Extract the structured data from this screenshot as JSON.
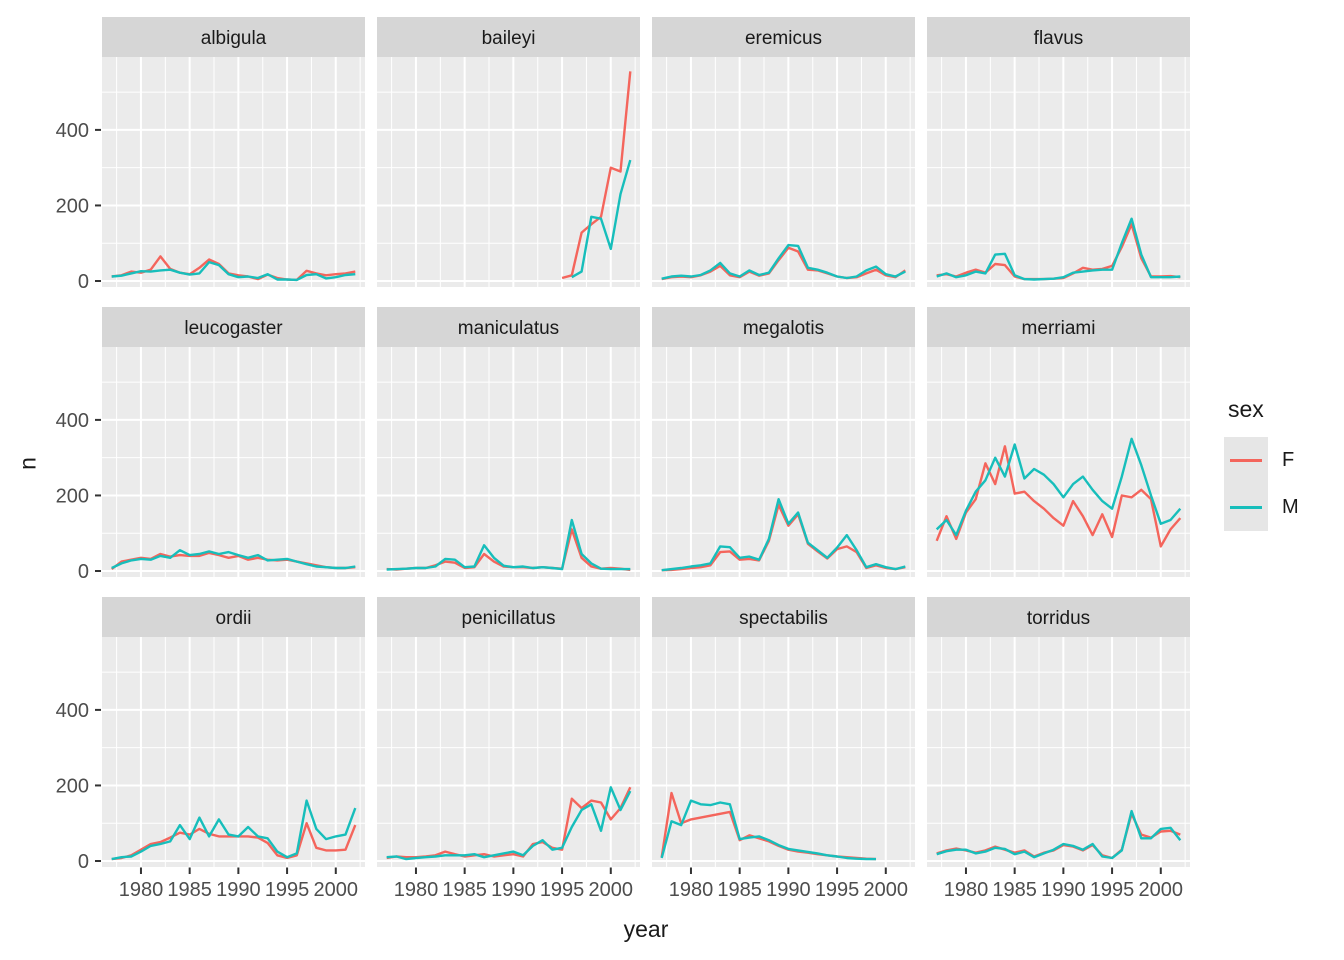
{
  "chart_data": {
    "type": "line",
    "title": "",
    "xlabel": "year",
    "ylabel": "n",
    "facet_variable": "species",
    "legend": {
      "title": "sex",
      "position": "right",
      "entries": [
        {
          "label": "F",
          "color": "#F4655C"
        },
        {
          "label": "M",
          "color": "#17BEBB"
        }
      ]
    },
    "x": [
      1977,
      1978,
      1979,
      1980,
      1981,
      1982,
      1983,
      1984,
      1985,
      1986,
      1987,
      1988,
      1989,
      1990,
      1991,
      1992,
      1993,
      1994,
      1995,
      1996,
      1997,
      1998,
      1999,
      2000,
      2001,
      2002
    ],
    "x_ticks": [
      1980,
      1985,
      1990,
      1995,
      2000
    ],
    "x_minor_ticks": [
      1977.5,
      1982.5,
      1987.5,
      1992.5,
      1997.5,
      2002.5
    ],
    "y_ticks": [
      0,
      200,
      400
    ],
    "y_minor_ticks": [
      100,
      300,
      500
    ],
    "ylim": [
      0,
      593
    ],
    "grid": "white major+minor gridlines on grey panels",
    "facets": [
      {
        "name": "albigula",
        "F": [
          12,
          15,
          25,
          22,
          30,
          65,
          32,
          22,
          18,
          35,
          57,
          45,
          20,
          15,
          12,
          5,
          17,
          8,
          4,
          3,
          27,
          20,
          15,
          18,
          20,
          25
        ],
        "M": [
          12,
          14,
          20,
          26,
          25,
          28,
          30,
          22,
          17,
          20,
          50,
          42,
          18,
          10,
          12,
          8,
          18,
          4,
          4,
          3,
          16,
          18,
          7,
          10,
          16,
          18
        ]
      },
      {
        "name": "baileyi",
        "F": [
          null,
          null,
          null,
          null,
          null,
          null,
          null,
          null,
          null,
          null,
          null,
          null,
          null,
          null,
          null,
          null,
          null,
          null,
          8,
          15,
          128,
          150,
          170,
          300,
          290,
          555
        ],
        "M": [
          null,
          null,
          null,
          null,
          null,
          null,
          null,
          null,
          null,
          null,
          null,
          null,
          null,
          null,
          null,
          null,
          null,
          null,
          null,
          10,
          25,
          170,
          165,
          85,
          230,
          320
        ]
      },
      {
        "name": "eremicus",
        "F": [
          5,
          10,
          12,
          10,
          15,
          25,
          40,
          15,
          10,
          25,
          14,
          20,
          55,
          88,
          78,
          30,
          28,
          20,
          12,
          8,
          10,
          20,
          30,
          15,
          10,
          28
        ],
        "M": [
          6,
          12,
          14,
          12,
          16,
          28,
          48,
          20,
          12,
          28,
          16,
          22,
          60,
          95,
          93,
          35,
          30,
          22,
          12,
          8,
          12,
          28,
          38,
          18,
          12,
          25
        ]
      },
      {
        "name": "flavus",
        "F": [
          15,
          18,
          12,
          22,
          30,
          22,
          45,
          42,
          12,
          5,
          5,
          5,
          6,
          8,
          20,
          35,
          30,
          32,
          40,
          90,
          150,
          60,
          12,
          12,
          13,
          10
        ],
        "M": [
          12,
          20,
          10,
          15,
          25,
          20,
          70,
          72,
          15,
          5,
          4,
          5,
          6,
          10,
          22,
          25,
          28,
          30,
          30,
          100,
          165,
          70,
          10,
          10,
          10,
          12
        ]
      },
      {
        "name": "leucogaster",
        "F": [
          5,
          25,
          30,
          35,
          32,
          45,
          38,
          42,
          40,
          40,
          48,
          42,
          35,
          40,
          30,
          35,
          30,
          28,
          30,
          25,
          20,
          15,
          10,
          8,
          8,
          10
        ],
        "M": [
          8,
          20,
          28,
          32,
          30,
          40,
          35,
          55,
          42,
          45,
          52,
          45,
          50,
          42,
          35,
          42,
          28,
          30,
          32,
          25,
          18,
          12,
          10,
          8,
          8,
          12
        ]
      },
      {
        "name": "maniculatus",
        "F": [
          5,
          4,
          6,
          8,
          8,
          15,
          25,
          22,
          8,
          10,
          45,
          25,
          12,
          10,
          10,
          8,
          10,
          8,
          6,
          110,
          35,
          12,
          6,
          8,
          6,
          3
        ],
        "M": [
          4,
          5,
          6,
          8,
          8,
          12,
          32,
          30,
          10,
          12,
          68,
          35,
          14,
          10,
          12,
          8,
          10,
          8,
          5,
          135,
          45,
          20,
          6,
          5,
          5,
          5
        ]
      },
      {
        "name": "megalotis",
        "F": [
          2,
          3,
          5,
          8,
          10,
          15,
          50,
          52,
          30,
          32,
          28,
          80,
          175,
          120,
          150,
          72,
          52,
          33,
          58,
          65,
          50,
          8,
          15,
          8,
          5,
          10
        ],
        "M": [
          2,
          5,
          8,
          12,
          15,
          20,
          65,
          63,
          35,
          38,
          30,
          85,
          190,
          125,
          155,
          75,
          55,
          35,
          62,
          95,
          55,
          10,
          18,
          10,
          5,
          12
        ]
      },
      {
        "name": "merriami",
        "F": [
          80,
          145,
          85,
          155,
          190,
          285,
          230,
          330,
          205,
          210,
          185,
          165,
          140,
          120,
          185,
          145,
          95,
          150,
          90,
          200,
          195,
          215,
          190,
          65,
          110,
          140
        ],
        "M": [
          110,
          135,
          95,
          160,
          210,
          240,
          300,
          250,
          335,
          245,
          270,
          255,
          230,
          195,
          230,
          250,
          215,
          185,
          165,
          250,
          350,
          280,
          200,
          125,
          135,
          165
        ]
      },
      {
        "name": "ordii",
        "F": [
          5,
          8,
          15,
          30,
          45,
          50,
          62,
          75,
          70,
          85,
          72,
          65,
          65,
          65,
          65,
          62,
          48,
          15,
          8,
          15,
          100,
          35,
          28,
          28,
          30,
          95
        ],
        "M": [
          5,
          10,
          12,
          25,
          40,
          45,
          52,
          95,
          58,
          115,
          65,
          110,
          70,
          65,
          90,
          65,
          60,
          25,
          10,
          20,
          160,
          85,
          58,
          65,
          70,
          140
        ]
      },
      {
        "name": "penicillatus",
        "F": [
          8,
          12,
          10,
          10,
          12,
          15,
          25,
          18,
          12,
          15,
          18,
          12,
          15,
          18,
          12,
          45,
          50,
          35,
          30,
          165,
          140,
          160,
          155,
          110,
          140,
          195
        ],
        "M": [
          10,
          12,
          5,
          8,
          10,
          12,
          15,
          15,
          15,
          18,
          10,
          15,
          20,
          25,
          15,
          40,
          55,
          30,
          35,
          90,
          135,
          150,
          80,
          195,
          135,
          185
        ]
      },
      {
        "name": "spectabilis",
        "F": [
          10,
          180,
          100,
          110,
          115,
          120,
          125,
          130,
          55,
          68,
          60,
          52,
          40,
          30,
          25,
          22,
          18,
          15,
          12,
          10,
          8,
          6,
          5,
          null,
          null,
          null
        ],
        "M": [
          8,
          105,
          95,
          160,
          150,
          148,
          155,
          150,
          58,
          62,
          65,
          55,
          42,
          32,
          28,
          24,
          20,
          15,
          12,
          8,
          6,
          5,
          5,
          null,
          null,
          null
        ]
      },
      {
        "name": "torridus",
        "F": [
          20,
          28,
          33,
          28,
          22,
          28,
          38,
          30,
          22,
          28,
          12,
          22,
          28,
          42,
          38,
          28,
          42,
          15,
          8,
          30,
          125,
          70,
          62,
          78,
          80,
          70
        ],
        "M": [
          18,
          26,
          30,
          30,
          20,
          25,
          35,
          32,
          18,
          25,
          10,
          20,
          30,
          45,
          40,
          30,
          45,
          12,
          8,
          28,
          132,
          60,
          60,
          85,
          88,
          55
        ]
      }
    ]
  },
  "colors": {
    "background": "#FFFFFF",
    "panel_bg": "#EBEBEB",
    "strip_bg": "#D6D6D6",
    "grid": "#FFFFFF",
    "axis_text": "#4D4D4D",
    "strip_text": "#1A1A1A",
    "tick_mark": "#333333",
    "series_F": "#F4655C",
    "series_M": "#17BEBB",
    "legend_key_bg": "#E6E6E6"
  }
}
